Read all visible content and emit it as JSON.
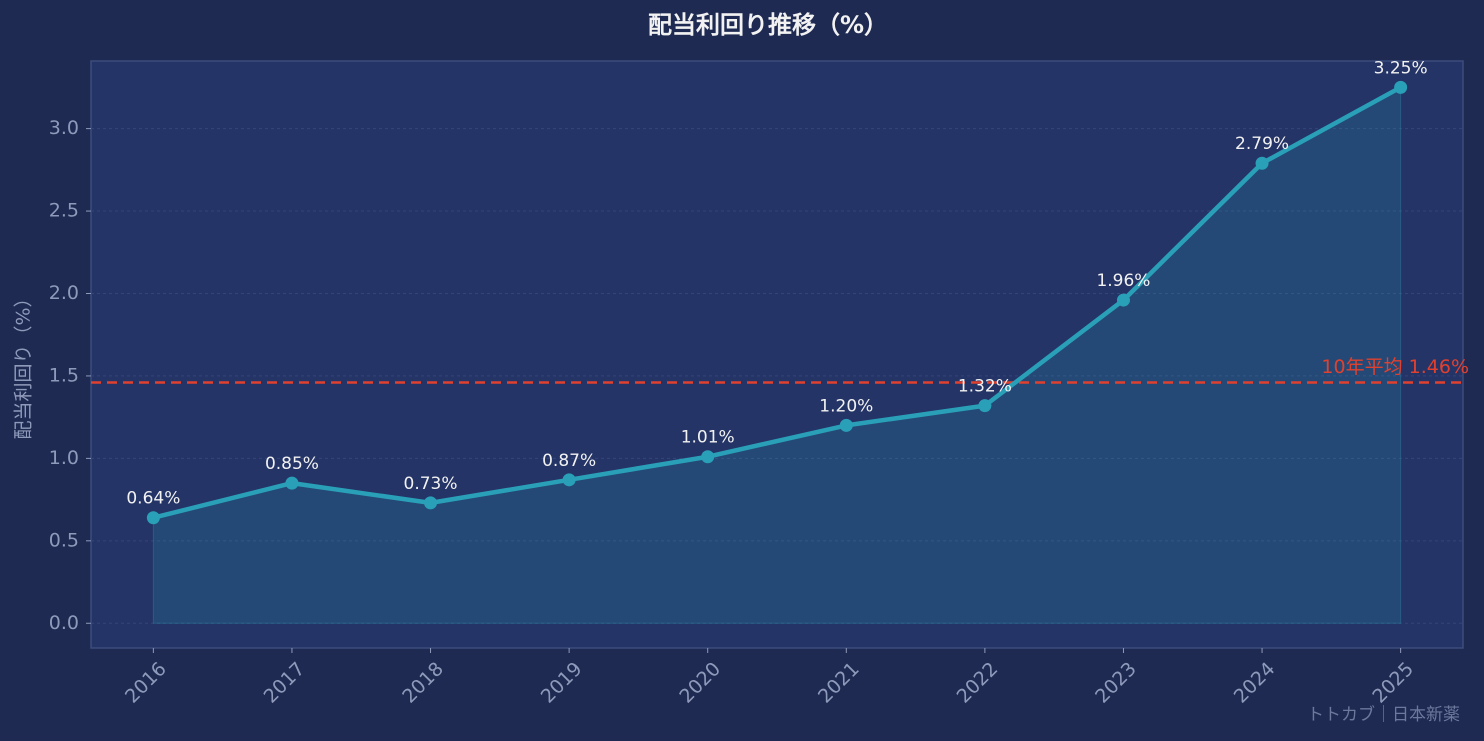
{
  "chart_data": {
    "type": "line",
    "title": "配当利回り推移（%）",
    "ylabel": "配当利回り（%）",
    "categories": [
      "2016",
      "2017",
      "2018",
      "2019",
      "2020",
      "2021",
      "2022",
      "2023",
      "2024",
      "2025"
    ],
    "series": [
      {
        "name": "配当利回り",
        "color": "#2aa0b8",
        "values": [
          0.64,
          0.85,
          0.73,
          0.87,
          1.01,
          1.2,
          1.32,
          1.96,
          2.79,
          3.25
        ],
        "value_labels": [
          "0.64%",
          "0.85%",
          "0.73%",
          "0.87%",
          "1.01%",
          "1.20%",
          "1.32%",
          "1.96%",
          "2.79%",
          "3.25%"
        ]
      }
    ],
    "reference_line": {
      "value": 1.46,
      "label": "10年平均 1.46%",
      "color": "#e0412f"
    },
    "ylim": [
      -0.15,
      3.41
    ],
    "yticks": [
      {
        "value": 0,
        "label": "0.0"
      },
      0.5,
      {
        "value": 1,
        "label": "1.0"
      },
      1.5,
      {
        "value": 2,
        "label": "2.0"
      },
      2.5,
      {
        "value": 3,
        "label": "3.0"
      }
    ],
    "grid": true,
    "watermark": "トトカブ｜日本新薬"
  }
}
